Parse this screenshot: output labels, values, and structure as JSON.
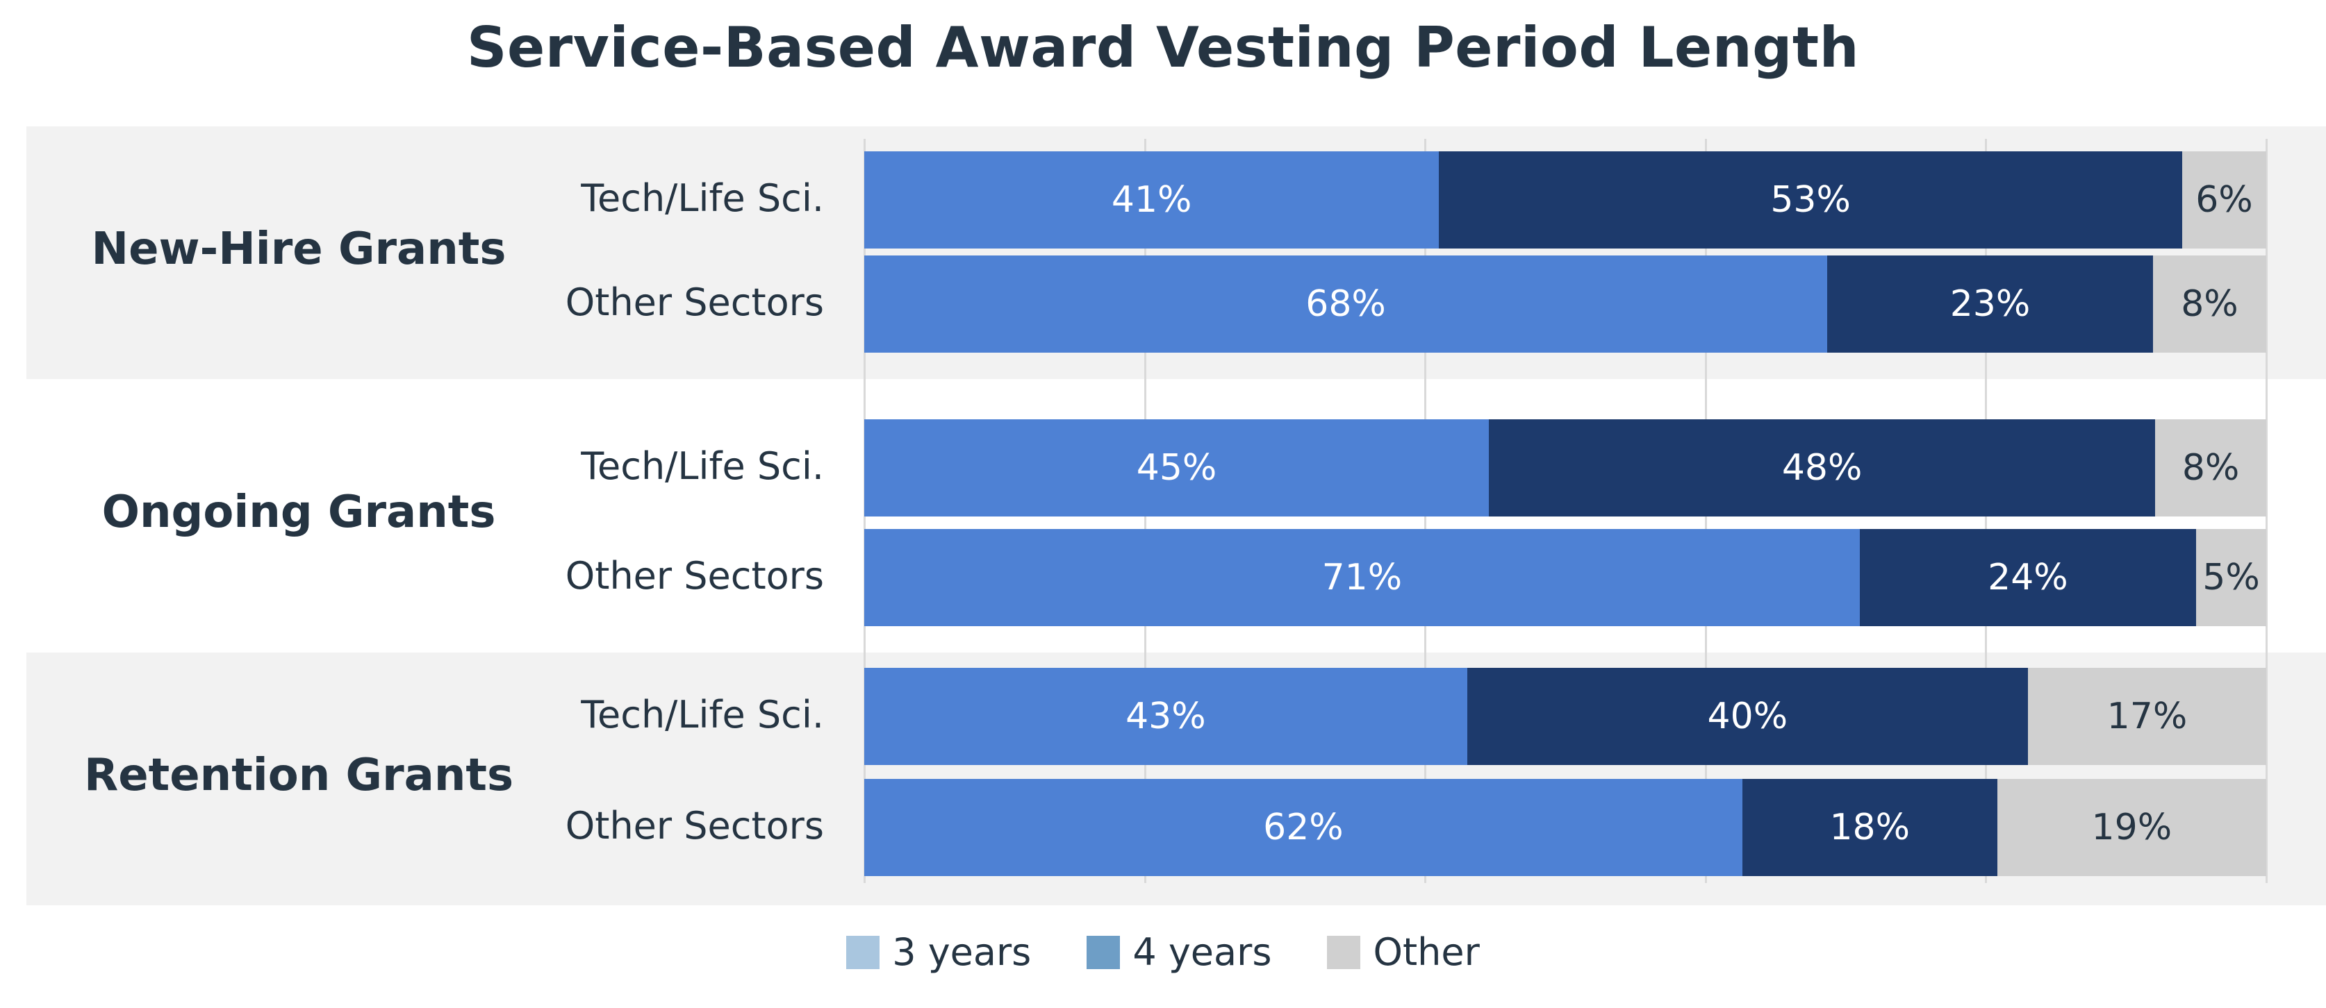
{
  "chart_data": {
    "type": "bar",
    "orientation": "horizontal",
    "stacked": true,
    "title": "Service-Based Award Vesting Period Length",
    "xlim": [
      0,
      100
    ],
    "legend_placement": "bottom",
    "series_names": [
      "3 years",
      "4 years",
      "Other"
    ],
    "colors": [
      "#4e81d4",
      "#1d3a6c",
      "#d0d0d0"
    ],
    "legend_colors": [
      "#a9c6df",
      "#6e9ec6",
      "#d0d0d0"
    ],
    "label_colors": [
      "#ffffff",
      "#ffffff",
      "#253442"
    ],
    "groups": [
      {
        "label": "New-Hire Grants",
        "rows": [
          {
            "label": "Tech/Life Sci.",
            "values": [
              41,
              53,
              6
            ],
            "labels": [
              "41%",
              "53%",
              "6%"
            ]
          },
          {
            "label": "Other Sectors",
            "values": [
              68,
              23,
              8
            ],
            "labels": [
              "68%",
              "23%",
              "8%"
            ]
          }
        ]
      },
      {
        "label": "Ongoing Grants",
        "rows": [
          {
            "label": "Tech/Life Sci.",
            "values": [
              45,
              48,
              8
            ],
            "labels": [
              "45%",
              "48%",
              "8%"
            ]
          },
          {
            "label": "Other Sectors",
            "values": [
              71,
              24,
              5
            ],
            "labels": [
              "71%",
              "24%",
              "5%"
            ]
          }
        ]
      },
      {
        "label": "Retention Grants",
        "rows": [
          {
            "label": "Tech/Life Sci.",
            "values": [
              43,
              40,
              17
            ],
            "labels": [
              "43%",
              "40%",
              "17%"
            ]
          },
          {
            "label": "Other Sectors",
            "values": [
              62,
              18,
              19
            ],
            "labels": [
              "62%",
              "18%",
              "19%"
            ]
          }
        ]
      }
    ]
  }
}
